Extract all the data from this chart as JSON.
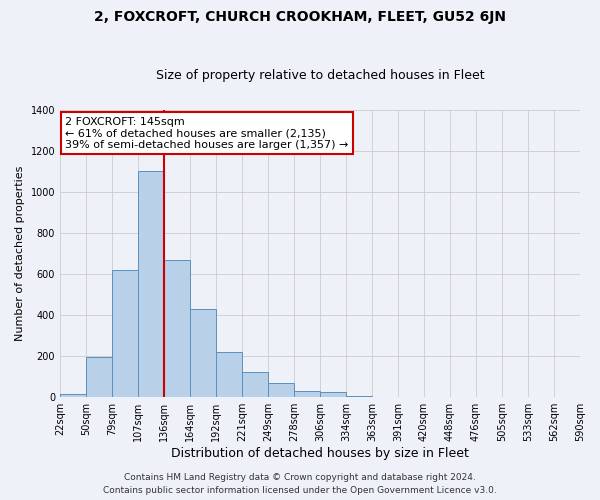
{
  "title": "2, FOXCROFT, CHURCH CROOKHAM, FLEET, GU52 6JN",
  "subtitle": "Size of property relative to detached houses in Fleet",
  "xlabel": "Distribution of detached houses by size in Fleet",
  "ylabel": "Number of detached properties",
  "bin_labels": [
    "22sqm",
    "50sqm",
    "79sqm",
    "107sqm",
    "136sqm",
    "164sqm",
    "192sqm",
    "221sqm",
    "249sqm",
    "278sqm",
    "306sqm",
    "334sqm",
    "363sqm",
    "391sqm",
    "420sqm",
    "448sqm",
    "476sqm",
    "505sqm",
    "533sqm",
    "562sqm",
    "590sqm"
  ],
  "bar_values": [
    15,
    195,
    620,
    1100,
    670,
    430,
    220,
    125,
    70,
    30,
    25,
    5,
    0,
    0,
    0,
    0,
    0,
    0,
    0,
    0
  ],
  "bar_color": "#b8d0e8",
  "bar_edge_color": "#5a8fbf",
  "vline_x_index": 4,
  "vline_color": "#cc0000",
  "annotation_title": "2 FOXCROFT: 145sqm",
  "annotation_line1": "← 61% of detached houses are smaller (2,135)",
  "annotation_line2": "39% of semi-detached houses are larger (1,357) →",
  "annotation_box_color": "#ffffff",
  "annotation_box_edge_color": "#cc0000",
  "ylim": [
    0,
    1400
  ],
  "yticks": [
    0,
    200,
    400,
    600,
    800,
    1000,
    1200,
    1400
  ],
  "footer1": "Contains HM Land Registry data © Crown copyright and database right 2024.",
  "footer2": "Contains public sector information licensed under the Open Government Licence v3.0.",
  "bg_color": "#eef2f8",
  "grid_color": "#cccccc",
  "title_fontsize": 10,
  "subtitle_fontsize": 9,
  "xlabel_fontsize": 9,
  "ylabel_fontsize": 8,
  "tick_fontsize": 7,
  "footer_fontsize": 6.5
}
